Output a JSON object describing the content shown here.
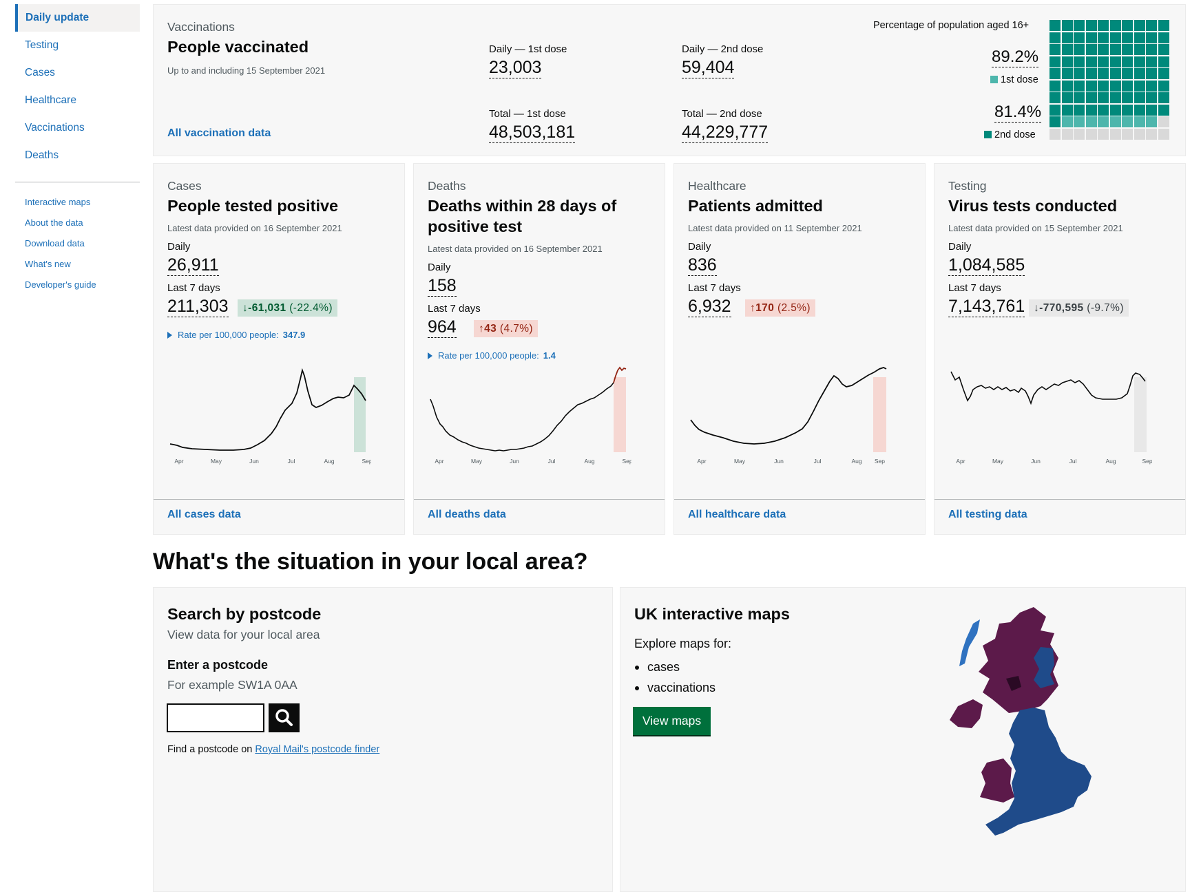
{
  "sidebar": {
    "items": [
      {
        "label": "Daily update",
        "active": true
      },
      {
        "label": "Testing"
      },
      {
        "label": "Cases"
      },
      {
        "label": "Healthcare"
      },
      {
        "label": "Vaccinations"
      },
      {
        "label": "Deaths"
      }
    ],
    "secondary": [
      "Interactive maps",
      "About the data",
      "Download data",
      "What's new",
      "Developer's guide"
    ]
  },
  "vaccinations": {
    "caption": "Vaccinations",
    "title": "People vaccinated",
    "note": "Up to and including 15 September 2021",
    "link": "All vaccination data",
    "daily_first_label": "Daily — 1st dose",
    "daily_first": "23,003",
    "daily_second_label": "Daily — 2nd dose",
    "daily_second": "59,404",
    "total_first_label": "Total — 1st dose",
    "total_first": "48,503,181",
    "total_second_label": "Total — 2nd dose",
    "total_second": "44,229,777",
    "pct_heading": "Percentage of population aged 16+",
    "pct_first": "89.2%",
    "pct_first_label": "1st dose",
    "pct_second": "81.4%",
    "pct_second_label": "2nd dose",
    "pct_first_value": 89.2,
    "pct_second_value": 81.4,
    "colors": {
      "first": "#4db6ac",
      "second": "#00897b",
      "empty": "#d9d9d9"
    }
  },
  "cards": [
    {
      "caption": "Cases",
      "title": "People tested positive",
      "note": "Latest data provided on 16 September 2021",
      "daily_label": "Daily",
      "daily": "26,911",
      "week_label": "Last 7 days",
      "week": "211,303",
      "change": "-61,031",
      "change_pct": "(-22.4%)",
      "direction": "down",
      "change_color": "good",
      "rate_label": "Rate per 100,000 people:",
      "rate": "347.9",
      "link": "All cases data",
      "months": [
        "Apr",
        "May",
        "Jun",
        "Jul",
        "Aug",
        "Sep"
      ]
    },
    {
      "caption": "Deaths",
      "title": "Deaths within 28 days of positive test",
      "note": "Latest data provided on 16 September 2021",
      "daily_label": "Daily",
      "daily": "158",
      "week_label": "Last 7 days",
      "week": "964",
      "change": "43",
      "change_pct": "(4.7%)",
      "direction": "up",
      "change_color": "bad",
      "rate_label": "Rate per 100,000 people:",
      "rate": "1.4",
      "link": "All deaths data",
      "months": [
        "Apr",
        "May",
        "Jun",
        "Jul",
        "Aug",
        "Sep"
      ]
    },
    {
      "caption": "Healthcare",
      "title": "Patients admitted",
      "note": "Latest data provided on 11 September 2021",
      "daily_label": "Daily",
      "daily": "836",
      "week_label": "Last 7 days",
      "week": "6,932",
      "change": "170",
      "change_pct": "(2.5%)",
      "direction": "up",
      "change_color": "bad",
      "link": "All healthcare data",
      "months": [
        "Apr",
        "May",
        "Jun",
        "Jul",
        "Aug",
        "Sep"
      ]
    },
    {
      "caption": "Testing",
      "title": "Virus tests conducted",
      "note": "Latest data provided on 15 September 2021",
      "daily_label": "Daily",
      "daily": "1,084,585",
      "week_label": "Last 7 days",
      "week": "7,143,761",
      "change": "-770,595",
      "change_pct": "(-9.7%)",
      "direction": "down",
      "change_color": "neutral",
      "link": "All testing data",
      "months": [
        "Apr",
        "May",
        "Jun",
        "Jul",
        "Aug",
        "Sep"
      ]
    }
  ],
  "local": {
    "heading": "What's the situation in your local area?",
    "postcode_title": "Search by postcode",
    "postcode_sub": "View data for your local area",
    "postcode_label": "Enter a postcode",
    "postcode_hint": "For example SW1A 0AA",
    "postcode_value": "",
    "finder_prefix": "Find a postcode on",
    "finder_link": "Royal Mail's postcode finder",
    "maps_title": "UK interactive maps",
    "maps_intro": "Explore maps for:",
    "maps_items": [
      "cases",
      "vaccinations"
    ],
    "maps_button": "View maps"
  }
}
